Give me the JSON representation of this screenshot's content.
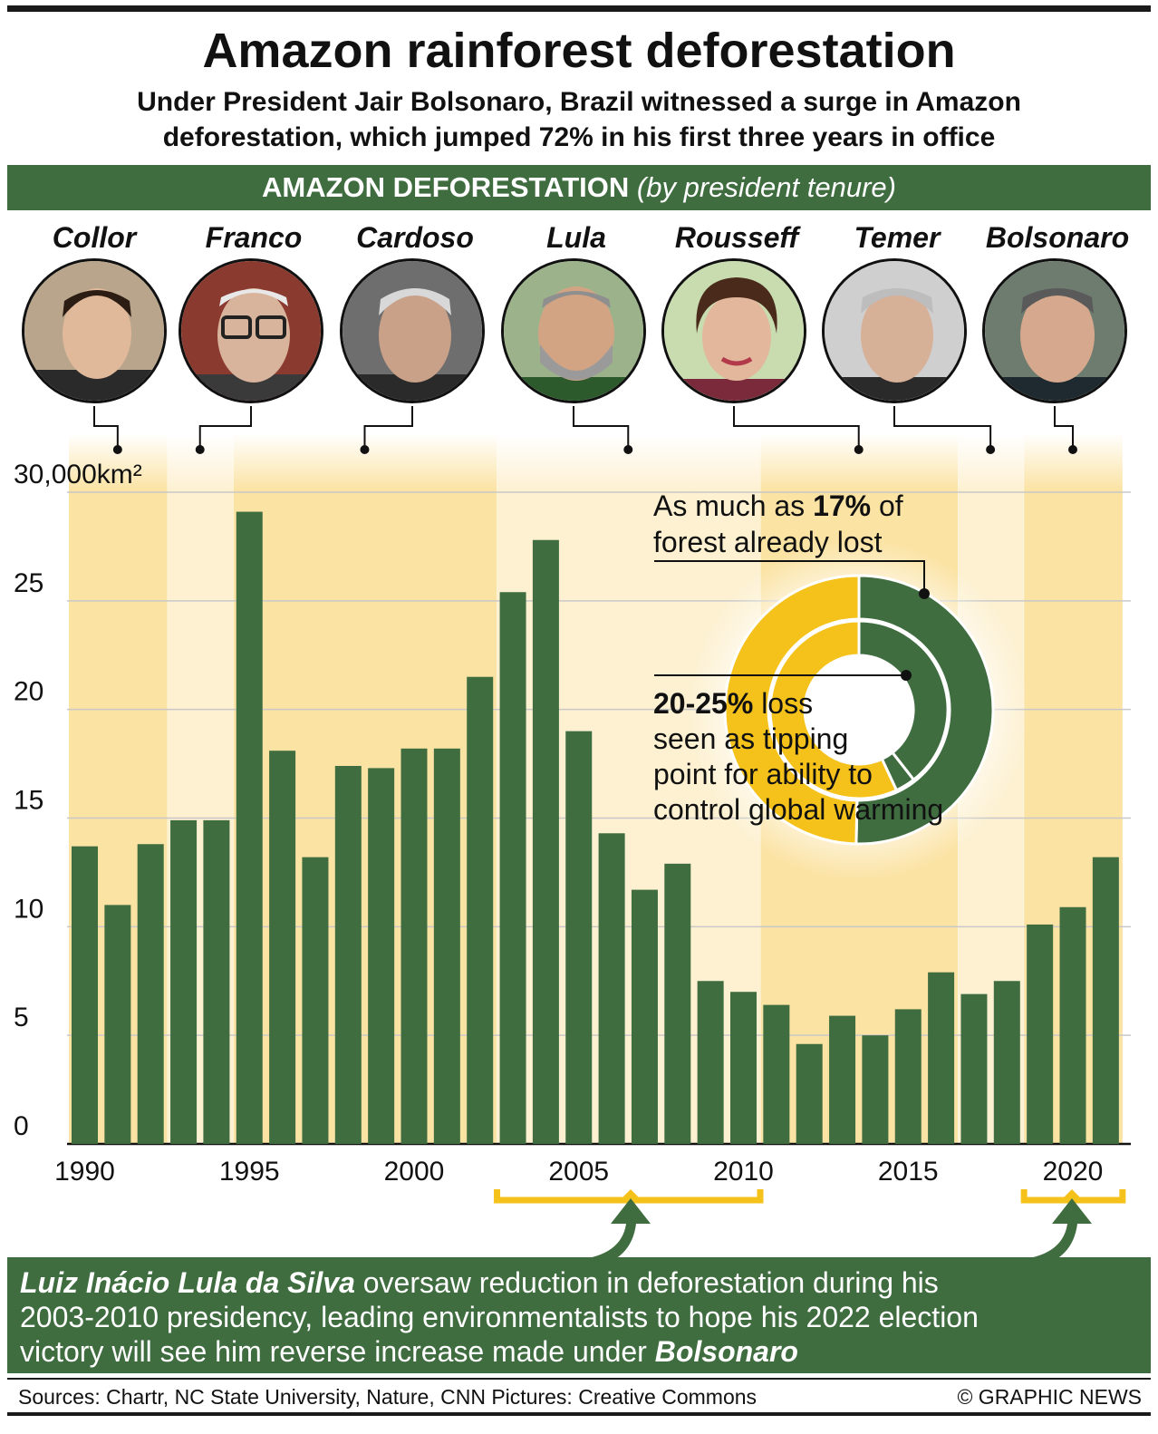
{
  "header": {
    "title": "Amazon rainforest deforestation",
    "subtitle_line1": "Under President Jair Bolsonaro, Brazil witnessed a surge in Amazon",
    "subtitle_line2": "deforestation, which jumped 72% in his first three years in office"
  },
  "banner": {
    "main": "AMAZON DEFORESTATION",
    "sub": "(by president tenure)"
  },
  "presidents": [
    {
      "name": "Collor",
      "start": 1990,
      "end": 1992
    },
    {
      "name": "Franco",
      "start": 1993,
      "end": 1994
    },
    {
      "name": "Cardoso",
      "start": 1995,
      "end": 2002
    },
    {
      "name": "Lula",
      "start": 2003,
      "end": 2010
    },
    {
      "name": "Rousseff",
      "start": 2011,
      "end": 2016
    },
    {
      "name": "Temer",
      "start": 2017,
      "end": 2018
    },
    {
      "name": "Bolsonaro",
      "start": 2019,
      "end": 2021
    }
  ],
  "chart_data": {
    "type": "bar",
    "title": "AMAZON DEFORESTATION (by president tenure)",
    "xlabel": "",
    "ylabel": "km²",
    "x": [
      1990,
      1991,
      1992,
      1993,
      1994,
      1995,
      1996,
      1997,
      1998,
      1999,
      2000,
      2001,
      2002,
      2003,
      2004,
      2005,
      2006,
      2007,
      2008,
      2009,
      2010,
      2011,
      2012,
      2013,
      2014,
      2015,
      2016,
      2017,
      2018,
      2019,
      2020,
      2021
    ],
    "values": [
      13.7,
      11.0,
      13.8,
      14.9,
      14.9,
      29.1,
      18.1,
      13.2,
      17.4,
      17.3,
      18.2,
      18.2,
      21.5,
      25.4,
      27.8,
      19.0,
      14.3,
      11.7,
      12.9,
      7.5,
      7.0,
      6.4,
      4.6,
      5.9,
      5.0,
      6.2,
      7.9,
      6.9,
      7.5,
      10.1,
      10.9,
      13.2
    ],
    "ylim": [
      0,
      30
    ],
    "yticks": [
      0,
      5,
      10,
      15,
      20,
      25,
      30
    ],
    "ytick_labels": [
      "0",
      "5",
      "10",
      "15",
      "20",
      "25",
      "30,000km²"
    ],
    "xticks": [
      1990,
      1995,
      2000,
      2005,
      2010,
      2015,
      2020
    ],
    "xtick_labels": [
      "1990",
      "1995",
      "2000",
      "2005",
      "2010",
      "2015",
      "2020"
    ],
    "grid": true,
    "bar_color": "#3f6d40"
  },
  "donut": {
    "outer_lost_pct": 17,
    "tipping_point_pct": [
      20,
      25
    ],
    "annotation_top_prefix": "As much as ",
    "annotation_top_bold": "17%",
    "annotation_top_suffix": " of",
    "annotation_top_line2": "forest already lost",
    "annotation_bottom_bold": "20-25%",
    "annotation_bottom_suffix": " loss",
    "annotation_bottom_line2": "seen as tipping",
    "annotation_bottom_line3": "point for ability to",
    "annotation_bottom_line4": "control global warming"
  },
  "highlights": [
    {
      "label": "Lula",
      "start": 2003,
      "end": 2010
    },
    {
      "label": "Bolsonaro",
      "start": 2019,
      "end": 2021
    }
  ],
  "callout": {
    "bold_name": "Luiz Inácio Lula da Silva",
    "text1": " oversaw reduction in deforestation during his",
    "line2": "2003-2010 presidency, leading environmentalists to hope his 2022 election",
    "line3": "victory will see him reverse increase made under ",
    "bold_end": "Bolsonaro"
  },
  "footer": {
    "sources": "Sources: Chartr, NC State University, Nature, CNN   Pictures: Creative Commons",
    "credit": "© GRAPHIC NEWS"
  },
  "colors": {
    "green": "#3f6d40",
    "yellow": "#f5c21b",
    "band": "#fbe3a4",
    "grid": "#c8c8c8"
  }
}
